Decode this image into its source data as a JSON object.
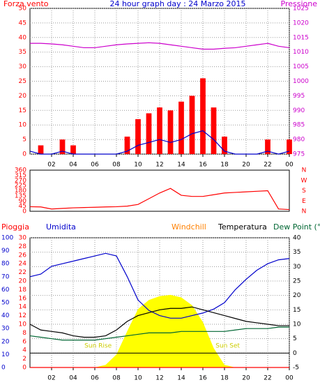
{
  "chart_data": [
    {
      "type": "wind",
      "title": "24 hour graph day : 24 Marzo 2015",
      "ylabel": "Forza vento",
      "y2label": "Pressione",
      "x": [
        0,
        1,
        2,
        3,
        4,
        5,
        6,
        7,
        8,
        9,
        10,
        11,
        12,
        13,
        14,
        15,
        16,
        17,
        18,
        19,
        20,
        21,
        22,
        23,
        24
      ],
      "xlim": [
        0,
        24
      ],
      "xticks": [
        {
          "value": 2,
          "label": "02"
        },
        {
          "value": 4,
          "label": "04"
        },
        {
          "value": 6,
          "label": "06"
        },
        {
          "value": 8,
          "label": "08"
        },
        10,
        12,
        14,
        16,
        18,
        20,
        22,
        {
          "value": 24,
          "label": "00"
        }
      ],
      "ylim": [
        0,
        50
      ],
      "yticks": [
        0,
        5,
        10,
        15,
        20,
        25,
        30,
        35,
        40,
        45,
        50
      ],
      "y2lim": [
        975,
        1025
      ],
      "y2ticks": [
        975,
        980,
        985,
        990,
        995,
        1000,
        1005,
        1010,
        1015,
        1020,
        1025
      ],
      "grid": true,
      "series": [
        {
          "color": "#ff0000",
          "values": [
            0,
            3,
            0,
            5,
            3,
            0,
            0,
            0,
            0,
            6,
            12,
            14,
            16,
            15,
            18,
            20,
            26,
            16,
            6,
            0,
            0,
            0,
            5,
            0,
            5
          ]
        },
        {
          "color": "#0000cc",
          "values": [
            1,
            0,
            0,
            1,
            0,
            0,
            0,
            0,
            0,
            1,
            3,
            4,
            5,
            4,
            5,
            7,
            8,
            5,
            1,
            0,
            0,
            0,
            1,
            0,
            1
          ]
        },
        {
          "color": "#cc00cc",
          "axis": "y2",
          "values": [
            1013,
            1013,
            1012.8,
            1012.5,
            1012,
            1011.5,
            1011.5,
            1012,
            1012.5,
            1012.8,
            1013,
            1013.2,
            1013,
            1012.5,
            1012,
            1011.5,
            1011,
            1011,
            1011.3,
            1011.5,
            1012,
            1012.5,
            1013,
            1012,
            1011.5
          ]
        }
      ]
    },
    {
      "type": "direction",
      "x": [
        0,
        1,
        2,
        3,
        4,
        5,
        6,
        7,
        8,
        9,
        10,
        11,
        12,
        13,
        14,
        15,
        16,
        17,
        18,
        19,
        20,
        21,
        22,
        23,
        24
      ],
      "xlim": [
        0,
        24
      ],
      "ylim": [
        0,
        360
      ],
      "yticks": [
        0,
        45,
        90,
        135,
        180,
        225,
        270,
        315,
        360
      ],
      "y2labels": [
        "N",
        "W",
        "S",
        "E",
        "N"
      ],
      "series": [
        {
          "color": "#ff0000",
          "values": [
            40,
            38,
            20,
            25,
            30,
            33,
            35,
            38,
            40,
            45,
            60,
            110,
            160,
            200,
            140,
            130,
            130,
            145,
            160,
            165,
            170,
            175,
            180,
            20,
            15
          ]
        }
      ]
    },
    {
      "type": "weather",
      "labels": {
        "rain": "Pioggia",
        "humidity": "Umidita",
        "windchill": "Windchill",
        "temperature": "Temperatura",
        "dewpoint": "Dew Point (°C"
      },
      "annotations": [
        "Sun Rise",
        "Sun Set"
      ],
      "x": [
        0,
        1,
        2,
        3,
        4,
        5,
        6,
        7,
        8,
        9,
        10,
        11,
        12,
        13,
        14,
        15,
        16,
        17,
        18,
        19,
        20,
        21,
        22,
        23,
        24
      ],
      "xlim": [
        0,
        24
      ],
      "xticks": [
        {
          "value": 2,
          "label": "02"
        },
        {
          "value": 4,
          "label": "04"
        },
        {
          "value": 6,
          "label": "06"
        },
        {
          "value": 8,
          "label": "08"
        },
        10,
        12,
        14,
        16,
        18,
        20,
        22,
        {
          "value": 24,
          "label": "00"
        }
      ],
      "hlim": [
        0,
        100
      ],
      "hticks": [
        0,
        10,
        20,
        30,
        40,
        50,
        60,
        70,
        80,
        90,
        100
      ],
      "ylim": [
        0,
        30
      ],
      "yticks": [
        0,
        2,
        4,
        6,
        8,
        10,
        12,
        14,
        16,
        18,
        20,
        22,
        24,
        26,
        28,
        30
      ],
      "y2lim": [
        -5,
        40
      ],
      "y2ticks": [
        -5,
        0,
        5,
        10,
        15,
        20,
        25,
        30,
        35,
        40
      ],
      "grid": true,
      "series": [
        {
          "color": "#ffff00",
          "axis": "h",
          "values": [
            0,
            0,
            0,
            0,
            0,
            0,
            0,
            2,
            10,
            28,
            45,
            52,
            55,
            56,
            54,
            48,
            35,
            15,
            2,
            0,
            0,
            0,
            0,
            0,
            0
          ]
        },
        {
          "color": "#0000cc",
          "axis": "h",
          "values": [
            70,
            72,
            78,
            80,
            82,
            84,
            86,
            88,
            86,
            70,
            52,
            44,
            40,
            38,
            38,
            40,
            42,
            45,
            50,
            60,
            68,
            75,
            80,
            83,
            84
          ]
        },
        {
          "color": "#000000",
          "axis": "y2",
          "values": [
            10,
            8,
            7.5,
            7,
            6,
            5.5,
            5.5,
            6,
            8,
            11,
            13,
            14,
            15,
            15.5,
            15.5,
            16,
            15,
            14,
            13,
            12,
            11,
            10.5,
            10,
            9.5,
            9.5
          ]
        },
        {
          "color": "#006633",
          "axis": "y2",
          "values": [
            6,
            5.5,
            5,
            4.5,
            4.5,
            4.5,
            4.5,
            5,
            5.5,
            6,
            6.5,
            7,
            7,
            7,
            7.5,
            7.5,
            7.5,
            7.5,
            7.5,
            8,
            8.5,
            8.5,
            8.5,
            9,
            9
          ]
        },
        {
          "color": "#ff0000",
          "values": [
            0,
            0,
            0,
            0,
            0,
            0,
            0,
            0,
            0,
            0,
            0,
            0,
            0,
            0,
            0,
            0,
            0,
            0,
            0,
            0,
            0,
            0,
            0,
            0,
            0
          ]
        }
      ]
    }
  ]
}
